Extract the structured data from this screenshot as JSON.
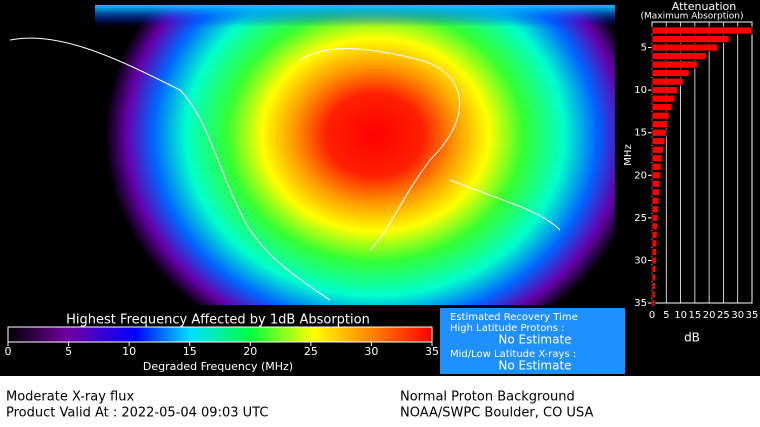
{
  "map": {
    "colorbar": {
      "title": "Highest Frequency Affected by 1dB Absorption",
      "label": "Degraded Frequency (MHz)",
      "lim": [
        0,
        35
      ],
      "ticks": [
        0,
        5,
        10,
        15,
        20,
        25,
        30,
        35
      ]
    }
  },
  "chart_data": {
    "type": "bar",
    "orientation": "horizontal",
    "title": "Attenuation",
    "subtitle": "(Maximum Absorption)",
    "y_label": "MHz",
    "x_label": "dB",
    "color": "#ff0000",
    "grid": true,
    "y": [
      3,
      4,
      5,
      6,
      7,
      8,
      9,
      10,
      11,
      12,
      13,
      14,
      15,
      16,
      17,
      18,
      19,
      20,
      21,
      22,
      23,
      24,
      25,
      26,
      27,
      28,
      29,
      30,
      31,
      32,
      33,
      34,
      35
    ],
    "values": [
      35,
      27,
      23,
      19,
      16,
      13,
      11,
      9,
      8,
      7,
      6,
      5.5,
      5,
      4.5,
      4,
      3.5,
      3.2,
      3,
      2.8,
      2.6,
      2.4,
      2.2,
      2,
      1.9,
      1.8,
      1.7,
      1.6,
      1.5,
      1.4,
      1.3,
      1.2,
      1.1,
      1
    ],
    "xlim": [
      0,
      35
    ],
    "xticks": [
      0,
      5,
      10,
      15,
      20,
      25,
      30,
      35
    ],
    "ylim": [
      2,
      35
    ],
    "yticks": [
      5,
      10,
      15,
      20,
      25,
      30,
      35
    ]
  },
  "recovery": {
    "title": "Estimated Recovery Time",
    "high_label": "High Latitude Protons :",
    "high_value": "No Estimate",
    "low_label": "Mid/Low Latitude X-rays :",
    "low_value": "No Estimate"
  },
  "footer": {
    "flux": "Moderate X-ray flux",
    "valid": "Product Valid At : 2022-05-04 09:03 UTC",
    "proton": "Normal Proton Background",
    "source": "NOAA/SWPC Boulder, CO USA"
  }
}
